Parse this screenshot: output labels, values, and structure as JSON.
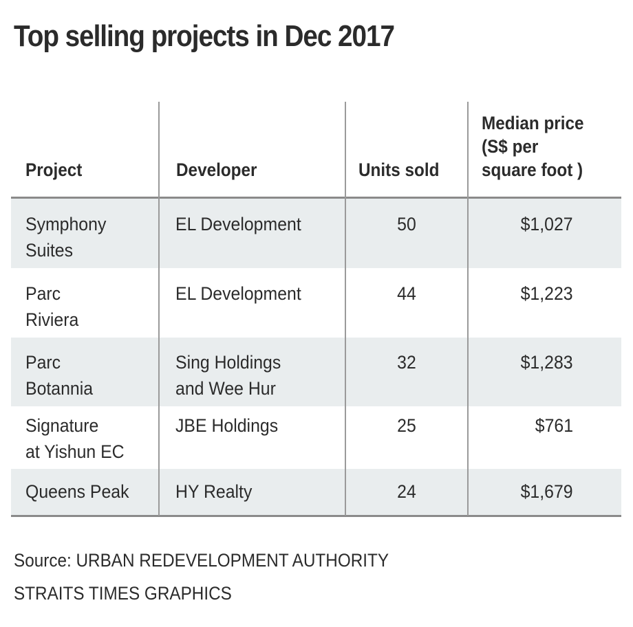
{
  "title": "Top selling projects in Dec 2017",
  "chart_data": {
    "type": "table",
    "title": "Top selling projects in Dec 2017",
    "columns": [
      "Project",
      "Developer",
      "Units sold",
      "Median price (S$ per square foot )"
    ],
    "header": {
      "project": "Project",
      "developer": "Developer",
      "units": "Units sold",
      "price_line1": "Median price",
      "price_line2": "(S$ per",
      "price_line3": "square foot )"
    },
    "rows": [
      {
        "project": [
          "Symphony",
          "Suites"
        ],
        "developer": [
          "EL Development"
        ],
        "units": "50",
        "price": "$1,027"
      },
      {
        "project": [
          "Parc",
          "Riviera"
        ],
        "developer": [
          "EL Development"
        ],
        "units": "44",
        "price": "$1,223"
      },
      {
        "project": [
          "Parc",
          "Botannia"
        ],
        "developer": [
          "Sing Holdings",
          "and Wee Hur"
        ],
        "units": "32",
        "price": "$1,283"
      },
      {
        "project": [
          "Signature",
          "at Yishun EC"
        ],
        "developer": [
          "JBE Holdings"
        ],
        "units": "25",
        "price": "$761"
      },
      {
        "project": [
          "Queens Peak"
        ],
        "developer": [
          "HY Realty"
        ],
        "units": "24",
        "price": "$1,679"
      }
    ],
    "values": {
      "units_sold": [
        50,
        44,
        32,
        25,
        24
      ],
      "median_price_psf": [
        1027,
        1223,
        1283,
        761,
        1679
      ]
    }
  },
  "footer": {
    "source": "Source: URBAN REDEVELOPMENT AUTHORITY",
    "credit": "STRAITS TIMES GRAPHICS"
  },
  "colors": {
    "text": "#2b2b2b",
    "row_shade": "#e9edee",
    "rule": "#8a8a8a"
  }
}
